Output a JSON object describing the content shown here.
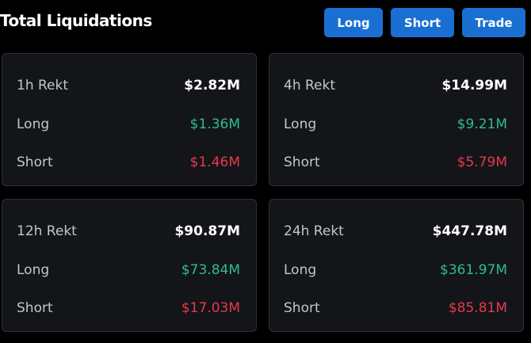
{
  "header": {
    "title": "Total Liquidations",
    "buttons": [
      "Long",
      "Short",
      "Trade"
    ]
  },
  "cards": [
    {
      "rows": [
        {
          "label": "1h Rekt",
          "value": "$2.82M"
        },
        {
          "label": "Long",
          "value": "$1.36M"
        },
        {
          "label": "Short",
          "value": "$1.46M"
        }
      ]
    },
    {
      "rows": [
        {
          "label": "4h Rekt",
          "value": "$14.99M"
        },
        {
          "label": "Long",
          "value": "$9.21M"
        },
        {
          "label": "Short",
          "value": "$5.79M"
        }
      ]
    },
    {
      "rows": [
        {
          "label": "12h Rekt",
          "value": "$90.87M"
        },
        {
          "label": "Long",
          "value": "$73.84M"
        },
        {
          "label": "Short",
          "value": "$17.03M"
        }
      ]
    },
    {
      "rows": [
        {
          "label": "24h Rekt",
          "value": "$447.78M"
        },
        {
          "label": "Long",
          "value": "$361.97M"
        },
        {
          "label": "Short",
          "value": "$85.81M"
        }
      ]
    }
  ]
}
